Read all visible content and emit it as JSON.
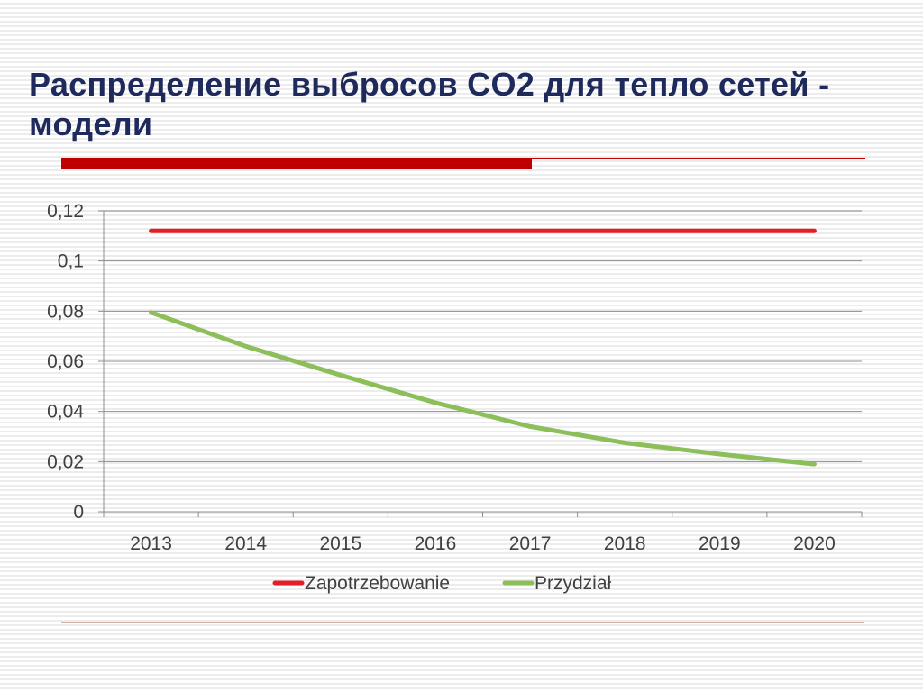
{
  "slide": {
    "title": "Распределение выбросов CO2 для тепло сетей - модели"
  },
  "colors": {
    "title": "#1f2a5c",
    "accent_bar": "#c00000",
    "zapotrzebowanie": "#e31e24",
    "przydzial": "#8cbe5a"
  },
  "chart_data": {
    "type": "line",
    "title": "",
    "xlabel": "",
    "ylabel": "",
    "categories": [
      "2013",
      "2014",
      "2015",
      "2016",
      "2017",
      "2018",
      "2019",
      "2020"
    ],
    "y_ticks": [
      "0",
      "0,02",
      "0,04",
      "0,06",
      "0,08",
      "0,1",
      "0,12"
    ],
    "ylim": [
      0,
      0.12
    ],
    "grid": true,
    "legend_position": "bottom",
    "series": [
      {
        "name": "Zapotrzebowanie",
        "color": "#e31e24",
        "values": [
          0.112,
          0.112,
          0.112,
          0.112,
          0.112,
          0.112,
          0.112,
          0.112
        ]
      },
      {
        "name": "Przydział",
        "color": "#8cbe5a",
        "values": [
          0.0795,
          0.066,
          0.0545,
          0.0435,
          0.034,
          0.0275,
          0.023,
          0.019
        ]
      }
    ]
  }
}
